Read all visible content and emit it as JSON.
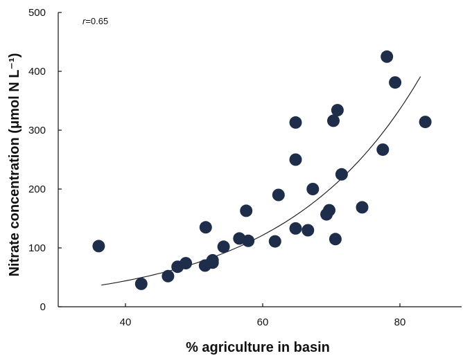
{
  "chart_data": {
    "type": "scatter",
    "title": "",
    "xlabel": "% agriculture in basin",
    "ylabel": "Nitrate concentration (μmol N L⁻¹)",
    "xlim": [
      30,
      90
    ],
    "ylim": [
      0,
      500
    ],
    "x_ticks": [
      40,
      60,
      80
    ],
    "y_ticks": [
      0,
      100,
      200,
      300,
      400,
      500
    ],
    "annotation": {
      "symbol": "r",
      "text": "=0.65"
    },
    "colors": {
      "points": "#1e2d4a",
      "fit": "#222222",
      "axis": "#111111"
    },
    "grid": false,
    "legend": "none",
    "points": [
      {
        "x": 36.1,
        "y": 103
      },
      {
        "x": 42.3,
        "y": 39
      },
      {
        "x": 46.2,
        "y": 52
      },
      {
        "x": 47.6,
        "y": 68
      },
      {
        "x": 48.8,
        "y": 74
      },
      {
        "x": 51.6,
        "y": 70
      },
      {
        "x": 51.7,
        "y": 135
      },
      {
        "x": 52.7,
        "y": 75
      },
      {
        "x": 52.7,
        "y": 79
      },
      {
        "x": 54.3,
        "y": 102
      },
      {
        "x": 56.6,
        "y": 116
      },
      {
        "x": 57.6,
        "y": 163
      },
      {
        "x": 57.9,
        "y": 112
      },
      {
        "x": 61.8,
        "y": 111
      },
      {
        "x": 62.3,
        "y": 190
      },
      {
        "x": 64.8,
        "y": 250
      },
      {
        "x": 64.8,
        "y": 313
      },
      {
        "x": 64.8,
        "y": 133
      },
      {
        "x": 66.6,
        "y": 130
      },
      {
        "x": 67.3,
        "y": 200
      },
      {
        "x": 69.3,
        "y": 157
      },
      {
        "x": 69.7,
        "y": 164
      },
      {
        "x": 70.3,
        "y": 316
      },
      {
        "x": 70.6,
        "y": 115
      },
      {
        "x": 70.9,
        "y": 334
      },
      {
        "x": 71.5,
        "y": 225
      },
      {
        "x": 74.5,
        "y": 169
      },
      {
        "x": 77.5,
        "y": 267
      },
      {
        "x": 78.1,
        "y": 425
      },
      {
        "x": 79.3,
        "y": 381
      },
      {
        "x": 83.7,
        "y": 314
      }
    ],
    "fit": {
      "type": "exponential",
      "a": 5.77,
      "b": 0.0508,
      "x_range": [
        36.5,
        83
      ]
    }
  }
}
